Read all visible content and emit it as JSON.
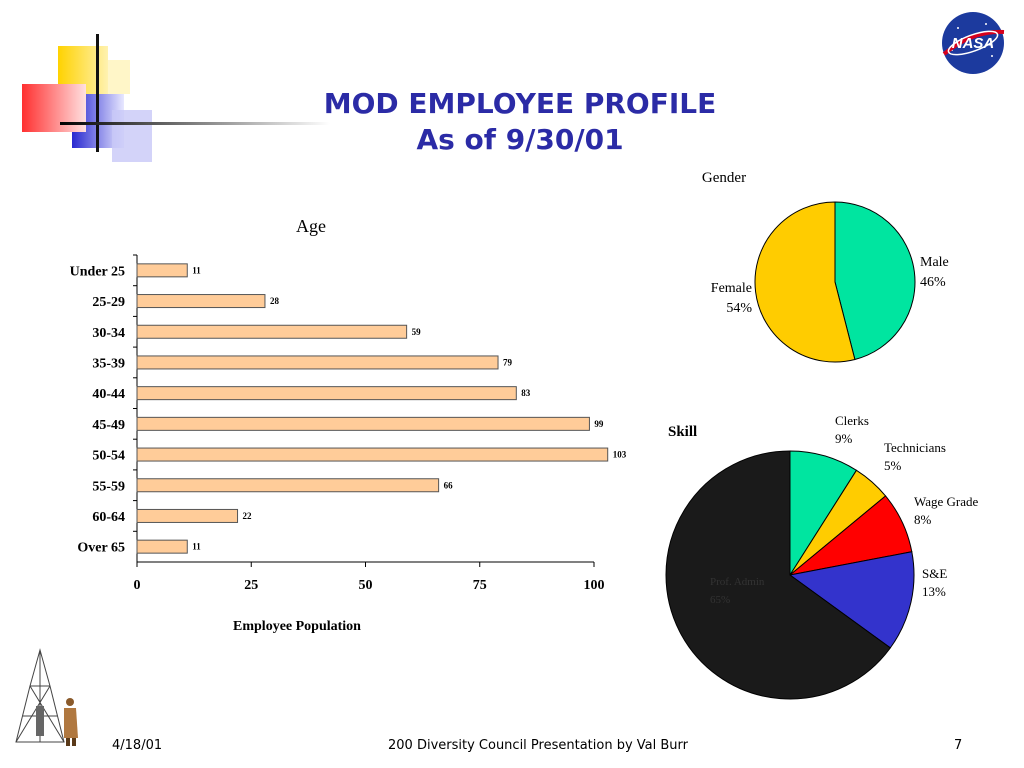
{
  "slide": {
    "title_line1": "MOD EMPLOYEE PROFILE",
    "title_line2": "As of 9/30/01",
    "logo_text": "NASA"
  },
  "footer": {
    "date": "4/18/01",
    "center": "200 Diversity Council Presentation by Val Burr",
    "page": "7"
  },
  "colors": {
    "title": "#2b2ba6",
    "bar_fill": "#ffcc99",
    "bar_stroke": "#555555",
    "male": "#00e5a0",
    "female": "#ffcc00",
    "clerks": "#00e5a0",
    "technicians": "#ffcc00",
    "wage_grade": "#ff0000",
    "se": "#3333cc",
    "prof_admin": "#1a1a1a"
  },
  "chart_data": [
    {
      "type": "bar",
      "orientation": "horizontal",
      "title": "Age",
      "xlabel": "Employee Population",
      "ylabel": "",
      "categories": [
        "Under 25",
        "25-29",
        "30-34",
        "35-39",
        "40-44",
        "45-49",
        "50-54",
        "55-59",
        "60-64",
        "Over 65"
      ],
      "values": [
        11,
        28,
        59,
        79,
        83,
        99,
        103,
        66,
        22,
        11
      ],
      "xlim": [
        0,
        100
      ],
      "xticks": [
        0,
        25,
        50,
        75,
        100
      ],
      "grid": false,
      "data_labels": true
    },
    {
      "type": "pie",
      "title": "Gender",
      "labels": [
        "Male",
        "Female"
      ],
      "values": [
        46,
        54
      ],
      "value_labels": [
        "46%",
        "54%"
      ]
    },
    {
      "type": "pie",
      "title": "Skill",
      "labels": [
        "Clerks",
        "Technicians",
        "Wage Grade",
        "S&E",
        "Prof. Admin"
      ],
      "values": [
        9,
        5,
        8,
        13,
        65
      ],
      "value_labels": [
        "9%",
        "5%",
        "8%",
        "13%",
        "65%"
      ]
    }
  ]
}
